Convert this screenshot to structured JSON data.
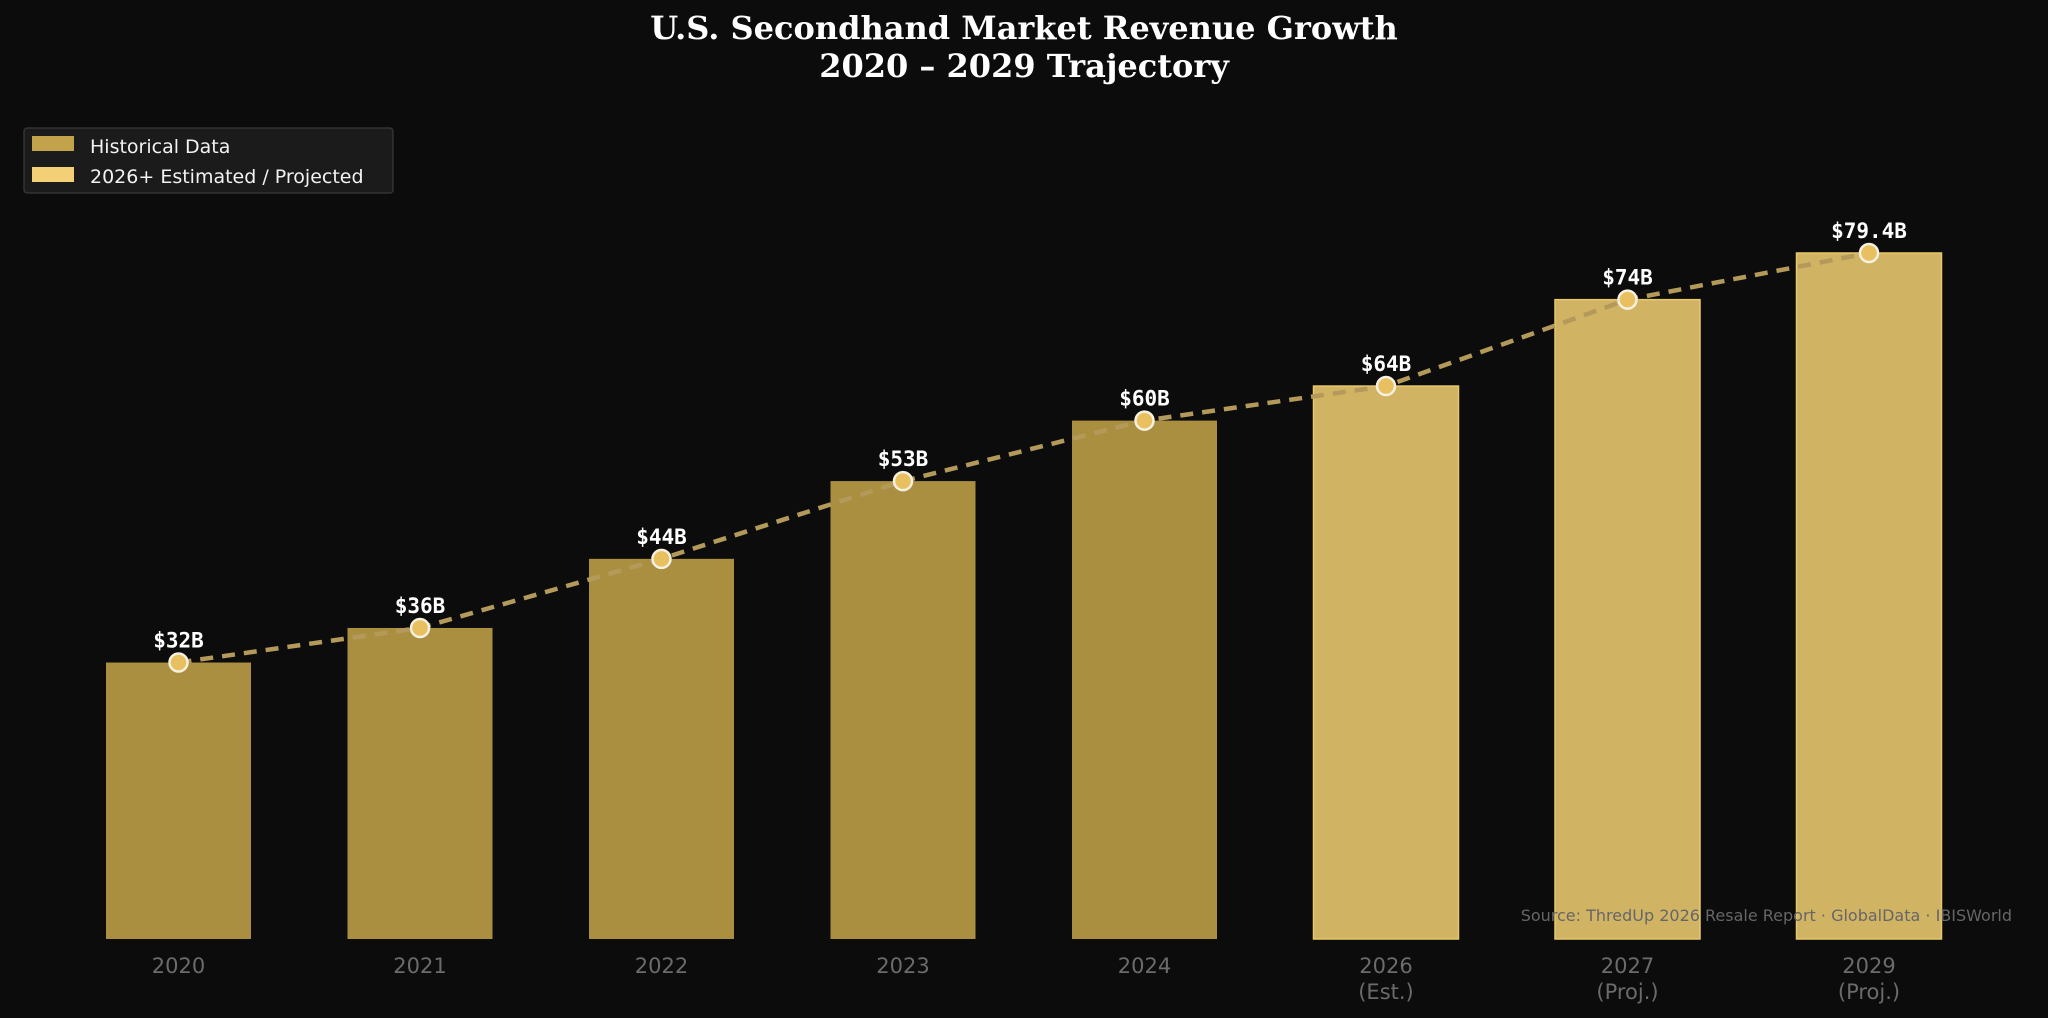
{
  "chart_data": {
    "type": "bar",
    "title": "U.S. Secondhand Market Revenue Growth",
    "subtitle": "2020 – 2029 Trajectory",
    "categories": [
      {
        "label": "2020",
        "sublabel": ""
      },
      {
        "label": "2021",
        "sublabel": ""
      },
      {
        "label": "2022",
        "sublabel": ""
      },
      {
        "label": "2023",
        "sublabel": ""
      },
      {
        "label": "2024",
        "sublabel": ""
      },
      {
        "label": "2026",
        "sublabel": "(Est.)"
      },
      {
        "label": "2027",
        "sublabel": "(Proj.)"
      },
      {
        "label": "2029",
        "sublabel": "(Proj.)"
      }
    ],
    "series": [
      {
        "name": "Historical Data",
        "color": "#aa8f40",
        "indices": [
          0,
          1,
          2,
          3,
          4
        ]
      },
      {
        "name": "2026+ Estimated / Projected",
        "color": "#d1b364",
        "edge_color": "#e8c86a",
        "indices": [
          5,
          6,
          7
        ]
      }
    ],
    "values": [
      32,
      36,
      44,
      53,
      60,
      64,
      74,
      79.4
    ],
    "data_labels": [
      "$32B",
      "$36B",
      "$44B",
      "$53B",
      "$60B",
      "$64B",
      "$74B",
      "$79.4B"
    ],
    "trend_line": {
      "style": "dashed",
      "color": "#b39a5a",
      "marker_color": "#e8c060",
      "marker_edge": "#f5f0e0"
    },
    "ylim": [
      0,
      88
    ],
    "xlabel": "",
    "ylabel": "",
    "grid": false,
    "legend": {
      "position": "top-left",
      "swatches": [
        "#c2a24b",
        "#f3cf75"
      ],
      "items": [
        "Historical Data",
        "2026+ Estimated / Projected"
      ]
    },
    "source": "Source: ThredUp 2026 Resale Report · GlobalData · IBISWorld"
  }
}
